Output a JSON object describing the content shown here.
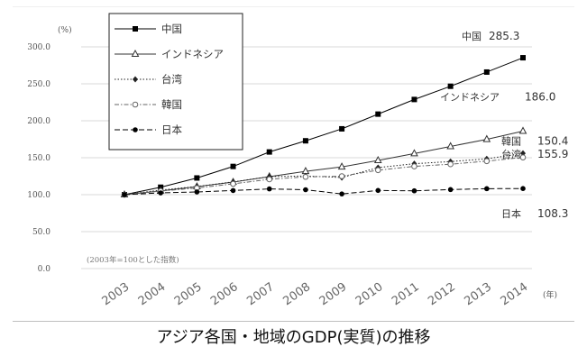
{
  "caption": "アジア各国・地域のGDP(実質)の推移",
  "chart_data": {
    "type": "line",
    "title": "",
    "xlabel": "(年)",
    "ylabel": "(%)",
    "note": "(2003年=100とした指数)",
    "ylim": [
      0,
      300
    ],
    "yticks": [
      "0.0",
      "50.0",
      "100.0",
      "150.0",
      "200.0",
      "250.0",
      "300.0"
    ],
    "categories": [
      "2003",
      "2004",
      "2005",
      "2006",
      "2007",
      "2008",
      "2009",
      "2010",
      "2011",
      "2012",
      "2013",
      "2014"
    ],
    "grid": true,
    "legend_position": "top-left",
    "series": [
      {
        "name": "中国",
        "end_label": "中国",
        "end_value": "285.3",
        "marker": "square",
        "dash": "solid",
        "color": "#000000",
        "values": [
          100,
          110.1,
          122.6,
          138.2,
          157.8,
          172.9,
          189.1,
          209.0,
          228.8,
          246.7,
          265.9,
          285.3
        ]
      },
      {
        "name": "インドネシア",
        "end_label": "インドネシア",
        "end_value": "186.0",
        "marker": "triangle",
        "dash": "solid",
        "color": "#333333",
        "values": [
          100,
          105.0,
          110.9,
          117.0,
          124.4,
          131.6,
          137.6,
          146.3,
          155.6,
          165.3,
          174.9,
          186.0
        ]
      },
      {
        "name": "台湾",
        "end_label": "台湾",
        "end_value": "155.9",
        "marker": "diamond",
        "dash": "dotted",
        "color": "#222222",
        "values": [
          100,
          106.2,
          111.1,
          117.3,
          124.4,
          125.3,
          123.2,
          136.6,
          141.9,
          144.8,
          148.5,
          155.9
        ]
      },
      {
        "name": "韓国",
        "end_label": "韓国",
        "end_value": "150.4",
        "marker": "circle-open",
        "dash": "dashdot",
        "color": "#666666",
        "values": [
          100,
          104.9,
          109.0,
          114.6,
          120.8,
          124.1,
          125.0,
          133.2,
          138.3,
          141.2,
          145.4,
          150.4
        ]
      },
      {
        "name": "日本",
        "end_label": "日本",
        "end_value": "108.3",
        "marker": "circle",
        "dash": "longdash",
        "color": "#000000",
        "values": [
          100,
          102.4,
          103.7,
          105.6,
          107.8,
          106.7,
          101.0,
          105.7,
          105.2,
          106.9,
          108.1,
          108.3
        ]
      }
    ]
  }
}
